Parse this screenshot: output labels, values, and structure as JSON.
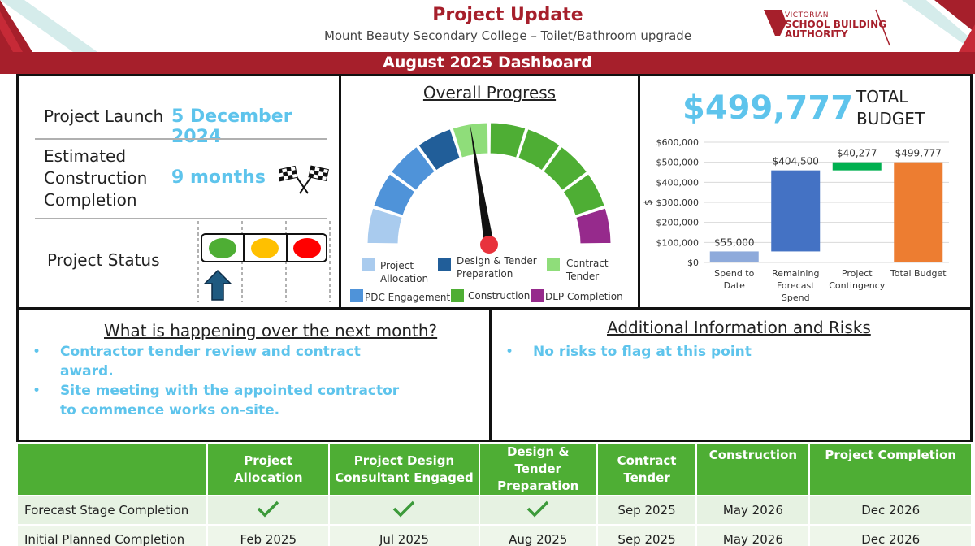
{
  "header": {
    "title": "Project Update",
    "subtitle": "Mount Beauty Secondary College – Toilet/Bathroom upgrade",
    "logo_lines": [
      "VICTORIAN",
      "SCHOOL BUILDING",
      "AUTHORITY"
    ],
    "banner": "August 2025 Dashboard",
    "brand_color": "#a61f2b"
  },
  "dates": {
    "launch_label": "Project Launch",
    "launch_value": "5 December 2024",
    "completion_label_lines": [
      "Estimated",
      "Construction",
      "Completion"
    ],
    "completion_value": "9 months",
    "completion_icon": "chequered-flags-icon",
    "status_label": "Project Status",
    "status_lights": [
      "green",
      "amber",
      "red"
    ],
    "status_current": "green",
    "status_pointer_icon": "up-arrow-icon"
  },
  "progress": {
    "title": "Overall Progress",
    "legend": [
      {
        "label": "Project Allocation",
        "color": "#a9cbee"
      },
      {
        "label": "PDC Engagement",
        "color": "#4f93d9"
      },
      {
        "label": "Design & Tender Preparation",
        "color": "#215e99"
      },
      {
        "label": "Construction",
        "color": "#4eae34"
      },
      {
        "label": "Contract Tender",
        "color": "#8fdd7a"
      },
      {
        "label": "DLP Completion",
        "color": "#962a8c"
      }
    ]
  },
  "budget": {
    "headline": "$499,777",
    "headline_label_lines": [
      "TOTAL",
      "BUDGET"
    ]
  },
  "chart_data": [
    {
      "type": "gauge",
      "title": "Overall Progress",
      "segments": [
        {
          "stage": "Project Allocation",
          "count": 1,
          "color": "#a9cbee"
        },
        {
          "stage": "PDC Engagement",
          "count": 2,
          "color": "#4f93d9"
        },
        {
          "stage": "Design & Tender Preparation",
          "count": 1,
          "color": "#215e99"
        },
        {
          "stage": "Contract Tender",
          "count": 1,
          "color": "#8fdd7a"
        },
        {
          "stage": "Construction",
          "count": 4,
          "color": "#4eae34"
        },
        {
          "stage": "DLP Completion",
          "count": 1,
          "color": "#962a8c"
        }
      ],
      "current_stage": "Contract Tender",
      "needle_fraction": 0.45
    },
    {
      "type": "bar",
      "subtype": "waterfall",
      "categories": [
        "Spend to Date",
        "Remaining Forecast Spend",
        "Project Contingency",
        "Total Budget"
      ],
      "values": [
        55000,
        404500,
        40277,
        499777
      ],
      "bases": [
        0,
        55000,
        459500,
        0
      ],
      "data_labels": [
        "$55,000",
        "$404,500",
        "$40,277",
        "$499,777"
      ],
      "colors": [
        "#8eaadb",
        "#4472c4",
        "#00b050",
        "#ed7d31"
      ],
      "ylabel": "$",
      "ylim": [
        0,
        600000
      ],
      "yticks": [
        0,
        100000,
        200000,
        300000,
        400000,
        500000,
        600000
      ],
      "ytick_labels": [
        "$0",
        "$100,000",
        "$200,000",
        "$300,000",
        "$400,000",
        "$500,000",
        "$600,000"
      ],
      "grid": true
    }
  ],
  "next_month": {
    "title": "What is happening over the next month?",
    "items": [
      "Contractor tender review and contract award.",
      "Site meeting with the appointed contractor to commence works on-site."
    ]
  },
  "risks": {
    "title": "Additional Information and Risks",
    "items": [
      "No risks to flag at this point"
    ]
  },
  "timeline": {
    "columns": [
      "",
      "Project Allocation",
      "Project Design Consultant Engaged",
      "Design & Tender Preparation",
      "Contract Tender",
      "Construction",
      "Project Completion"
    ],
    "rows": [
      {
        "label": "Forecast Stage Completion",
        "cells": [
          "check",
          "check",
          "check",
          "Sep 2025",
          "May 2026",
          "Dec 2026"
        ]
      },
      {
        "label": "Initial Planned Completion",
        "cells": [
          "Feb 2025",
          "Jul 2025",
          "Aug 2025",
          "Sep 2025",
          "May 2026",
          "Dec 2026"
        ]
      }
    ],
    "header_color": "#4eae34",
    "check_color": "#3c9a3a"
  }
}
